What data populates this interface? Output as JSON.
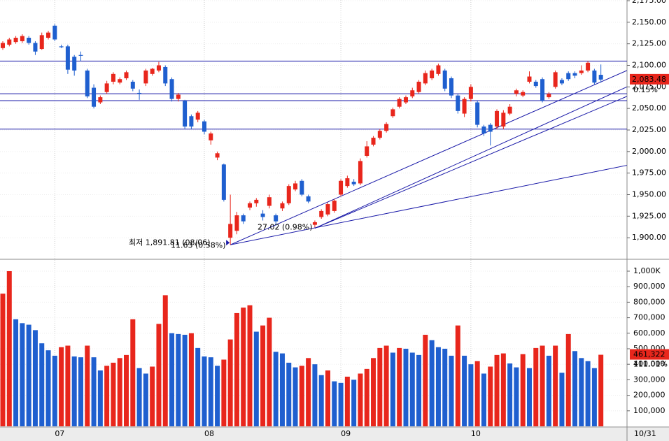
{
  "chart_data": [
    {
      "type": "candlestick",
      "up_color": "#e8261c",
      "down_color": "#1f5fcf",
      "grid": true,
      "categories": [
        null,
        null,
        null,
        null,
        null,
        null,
        null,
        null,
        "07",
        null,
        null,
        null,
        null,
        null,
        null,
        null,
        null,
        null,
        null,
        null,
        null,
        null,
        null,
        null,
        null,
        null,
        null,
        null,
        null,
        null,
        null,
        "08",
        null,
        null,
        null,
        null,
        null,
        null,
        null,
        null,
        null,
        null,
        null,
        null,
        null,
        null,
        null,
        null,
        null,
        null,
        null,
        null,
        "09",
        null,
        null,
        null,
        null,
        null,
        null,
        null,
        null,
        null,
        null,
        null,
        null,
        null,
        null,
        null,
        null,
        null,
        null,
        null,
        "10",
        null,
        null,
        null,
        null,
        null,
        null,
        null,
        null,
        null,
        null,
        null,
        null,
        null,
        null,
        null,
        null,
        null,
        null,
        null,
        null
      ],
      "end_label": "10/31",
      "open": [
        2120,
        2124,
        2127,
        2128,
        2132,
        2126,
        2119,
        2132,
        2146,
        2122,
        2122,
        2110,
        2112,
        2094,
        2074,
        2057,
        2069,
        2081,
        2080,
        2085,
        2081,
        2068,
        2079,
        2090,
        2094,
        2098,
        2084,
        2061,
        2059,
        2041,
        2037,
        2035,
        2013,
        1993,
        1985,
        1900,
        1908,
        1926,
        1935,
        1940,
        1928,
        1937,
        1926,
        1934,
        1940,
        1956,
        1966,
        1948,
        1915,
        1924,
        1927,
        1931,
        1950,
        1960,
        1965,
        1963,
        1995,
        2008,
        2016,
        2024,
        2041,
        2052,
        2057,
        2064,
        2069,
        2079,
        2085,
        2090,
        2094,
        2085,
        2065,
        2044,
        2061,
        2057,
        2029,
        2031,
        2029,
        2029,
        2044,
        2067,
        2065,
        2081,
        2081,
        2084,
        2063,
        2075,
        2083,
        2091,
        2091,
        2091,
        2094,
        2094,
        2089
      ],
      "high": [
        2128,
        2132,
        2134,
        2136,
        2134,
        2128,
        2138,
        2140,
        2148,
        2124,
        2124,
        2112,
        2116,
        2096,
        2078,
        2065,
        2082,
        2092,
        2086,
        2094,
        2083,
        2072,
        2096,
        2097,
        2104,
        2100,
        2086,
        2068,
        2060,
        2043,
        2047,
        2037,
        2023,
        2000,
        1986,
        1950,
        1930,
        1928,
        1942,
        1946,
        1932,
        1950,
        1928,
        1942,
        1962,
        1966,
        1968,
        1950,
        1920,
        1933,
        1941,
        1945,
        1968,
        1972,
        1968,
        1992,
        2012,
        2018,
        2026,
        2034,
        2051,
        2063,
        2065,
        2074,
        2083,
        2094,
        2096,
        2102,
        2096,
        2087,
        2067,
        2063,
        2078,
        2059,
        2031,
        2033,
        2049,
        2048,
        2055,
        2073,
        2071,
        2093,
        2083,
        2086,
        2069,
        2094,
        2085,
        2093,
        2093,
        2100,
        2105,
        2096,
        2101
      ],
      "low": [
        2118,
        2122,
        2125,
        2126,
        2124,
        2112,
        2118,
        2130,
        2128,
        2120,
        2090,
        2088,
        2105,
        2062,
        2050,
        2055,
        2067,
        2078,
        2078,
        2083,
        2070,
        2060,
        2076,
        2088,
        2092,
        2076,
        2058,
        2058,
        2026,
        2026,
        2034,
        2020,
        2008,
        1990,
        1942,
        1891.81,
        1904,
        1916,
        1932,
        1936,
        1920,
        1934,
        1914,
        1931,
        1938,
        1954,
        1948,
        1940,
        1912,
        1922,
        1925,
        1929,
        1948,
        1958,
        1960,
        1961,
        1993,
        2006,
        2014,
        2022,
        2039,
        2050,
        2055,
        2062,
        2067,
        2077,
        2083,
        2088,
        2070,
        2062,
        2044,
        2040,
        2058,
        2028,
        2018,
        2007,
        2026,
        2026,
        2042,
        2064,
        2063,
        2079,
        2074,
        2057,
        2061,
        2073,
        2077,
        2082,
        2085,
        2089,
        2092,
        2078,
        2080
      ],
      "close": [
        2126,
        2130,
        2132,
        2134,
        2126,
        2116,
        2135,
        2138,
        2130,
        2121,
        2095,
        2094,
        2111,
        2064,
        2052,
        2063,
        2079,
        2090,
        2084,
        2092,
        2073,
        2067,
        2094,
        2096,
        2100,
        2079,
        2061,
        2066,
        2029,
        2029,
        2045,
        2023,
        2021,
        1998,
        1944,
        1916,
        1926,
        1919,
        1940,
        1944,
        1924,
        1947,
        1919,
        1940,
        1960,
        1963,
        1950,
        1942,
        1918,
        1931,
        1939,
        1943,
        1966,
        1969,
        1962,
        1989,
        2006,
        2016,
        2024,
        2032,
        2049,
        2061,
        2063,
        2071,
        2081,
        2091,
        2094,
        2100,
        2073,
        2065,
        2047,
        2061,
        2075,
        2031,
        2021,
        2023,
        2047,
        2045,
        2052,
        2071,
        2069,
        2087,
        2076,
        2059,
        2067,
        2092,
        2079,
        2084,
        2088,
        2094,
        2103,
        2080,
        2083.48
      ],
      "ylim": [
        1875.8,
        2175.8
      ],
      "yticks": [
        {
          "value": 2175,
          "label": "2,175.00"
        },
        {
          "value": 2150,
          "label": "2,150.00"
        },
        {
          "value": 2125,
          "label": "2,125.00"
        },
        {
          "value": 2100,
          "label": "2,100.00"
        },
        {
          "value": 2075,
          "label": "2,075.00"
        },
        {
          "value": 2050,
          "label": "2,050.00"
        },
        {
          "value": 2025,
          "label": "2,025.00"
        },
        {
          "value": 2000,
          "label": "2,000.00"
        },
        {
          "value": 1975,
          "label": "1,975.00"
        },
        {
          "value": 1950,
          "label": "1,950.00"
        },
        {
          "value": 1925,
          "label": "1,925.00"
        },
        {
          "value": 1900,
          "label": "1,900.00"
        }
      ],
      "hlines": [
        2105,
        2067,
        2059,
        2026
      ],
      "hline_color": "#1a1aa8",
      "trendlines": [
        {
          "x": [
            35,
            96
          ],
          "y": [
            1891.81,
            2094
          ]
        },
        {
          "x": [
            35,
            96
          ],
          "y": [
            1891.81,
            1984
          ]
        },
        {
          "x": [
            48,
            96
          ],
          "y": [
            1911,
            2075
          ]
        },
        {
          "x": [
            48,
            96
          ],
          "y": [
            1911,
            2064
          ]
        }
      ],
      "annotations": [
        {
          "text": "최저 1,891.81 (08/06)"
        },
        {
          "text": "11.63 (0.58%)"
        },
        {
          "text": "27.02 (0.98%)"
        }
      ],
      "last": {
        "value": 2083.48,
        "label": "2,083.48",
        "change": "0.15%"
      }
    },
    {
      "type": "bar",
      "up_color": "#e8261c",
      "down_color": "#1f5fcf",
      "values": [
        855000,
        1000000,
        690000,
        665000,
        655000,
        620000,
        535000,
        490000,
        455000,
        510000,
        520000,
        450000,
        445000,
        520000,
        445000,
        360000,
        390000,
        410000,
        440000,
        460000,
        690000,
        375000,
        340000,
        385000,
        660000,
        845000,
        600000,
        595000,
        590000,
        600000,
        505000,
        450000,
        445000,
        390000,
        430000,
        560000,
        730000,
        765000,
        780000,
        610000,
        650000,
        700000,
        480000,
        470000,
        410000,
        380000,
        390000,
        440000,
        400000,
        330000,
        360000,
        290000,
        280000,
        320000,
        300000,
        340000,
        370000,
        440000,
        505000,
        520000,
        475000,
        505000,
        500000,
        475000,
        460000,
        590000,
        555000,
        510000,
        500000,
        455000,
        650000,
        455000,
        400000,
        420000,
        340000,
        385000,
        460000,
        470000,
        405000,
        380000,
        465000,
        375000,
        505000,
        520000,
        455000,
        520000,
        345000,
        595000,
        485000,
        440000,
        420000,
        375000,
        461322
      ],
      "ylim": [
        0,
        1072000
      ],
      "yticks": [
        {
          "value": 1000000,
          "label": "1,000K"
        },
        {
          "value": 900000,
          "label": "900,000"
        },
        {
          "value": 800000,
          "label": "800,000"
        },
        {
          "value": 700000,
          "label": "700,000"
        },
        {
          "value": 600000,
          "label": "600,000"
        },
        {
          "value": 500000,
          "label": "500,000"
        },
        {
          "value": 400000,
          "label": "400,000"
        },
        {
          "value": 300000,
          "label": "300,000"
        },
        {
          "value": 200000,
          "label": "200,000"
        },
        {
          "value": 100000,
          "label": "100,000"
        }
      ],
      "last": {
        "value": 461322,
        "label": "461,322",
        "ratio": "111.01%"
      }
    }
  ]
}
